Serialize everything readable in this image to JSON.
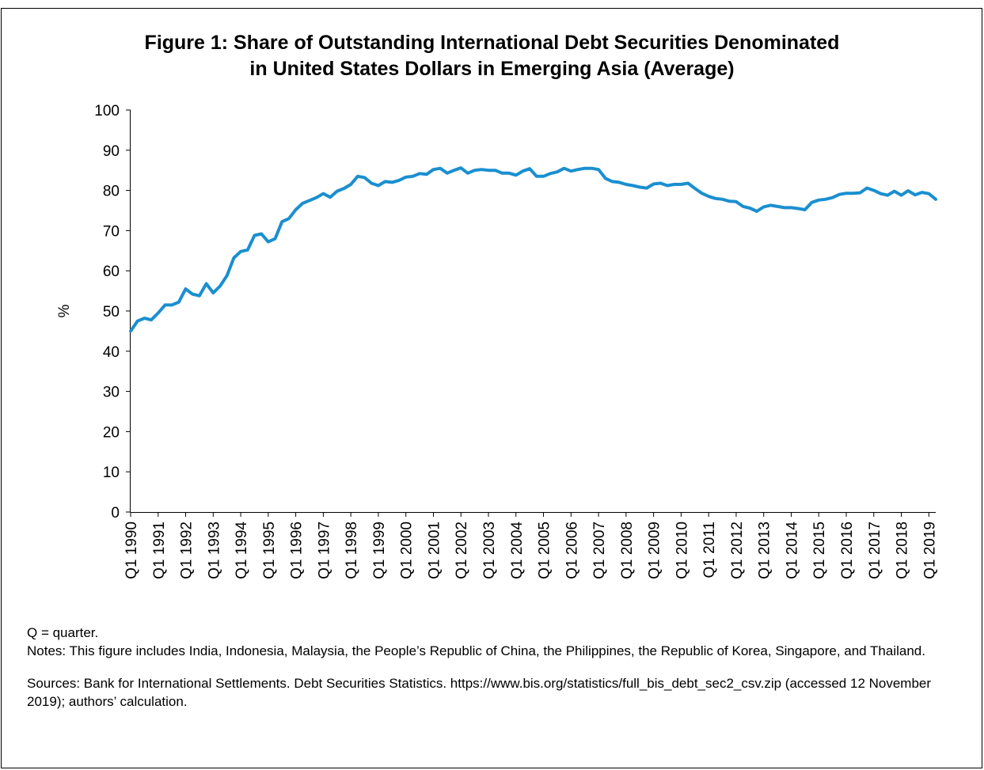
{
  "chart_data": {
    "type": "line",
    "title_line1": "Figure 1: Share of Outstanding International Debt Securities Denominated",
    "title_line2": "in United States Dollars in Emerging Asia (Average)",
    "ylabel": "%",
    "ylim": [
      0,
      100
    ],
    "yticks": [
      0,
      10,
      20,
      30,
      40,
      50,
      60,
      70,
      80,
      90,
      100
    ],
    "xticks": [
      "Q1 1990",
      "Q1 1991",
      "Q1 1992",
      "Q1 1993",
      "Q1 1994",
      "Q1 1995",
      "Q1 1996",
      "Q1 1997",
      "Q1 1998",
      "Q1 1999",
      "Q1 2000",
      "Q1 2001",
      "Q1 2002",
      "Q1 2003",
      "Q1 2004",
      "Q1 2005",
      "Q1 2006",
      "Q1 2007",
      "Q1 2008",
      "Q1 2009",
      "Q1 2010",
      "Q1 2011",
      "Q1 2012",
      "Q1 2013",
      "Q1 2014",
      "Q1 2015",
      "Q1 2016",
      "Q1 2017",
      "Q1 2018",
      "Q1 2019"
    ],
    "x_start": "Q1 1990",
    "x_frequency": "quarterly",
    "series_color": "#1a8fd0",
    "grid": false,
    "legend": "none",
    "values": [
      45,
      47.5,
      48.2,
      47.8,
      49.5,
      51.5,
      51.5,
      52.2,
      55.5,
      54.2,
      53.8,
      56.8,
      54.5,
      56.2,
      58.8,
      63.2,
      64.8,
      65.2,
      68.8,
      69.2,
      67.2,
      68.0,
      72.2,
      73.0,
      75.2,
      76.8,
      77.5,
      78.2,
      79.2,
      78.3,
      79.8,
      80.5,
      81.5,
      83.5,
      83.2,
      81.8,
      81.2,
      82.2,
      82.0,
      82.5,
      83.3,
      83.5,
      84.2,
      84.0,
      85.2,
      85.5,
      84.3,
      85.0,
      85.6,
      84.3,
      85.0,
      85.2,
      85.0,
      85.0,
      84.3,
      84.3,
      83.8,
      84.8,
      85.4,
      83.5,
      83.5,
      84.2,
      84.6,
      85.5,
      84.8,
      85.2,
      85.5,
      85.5,
      85.2,
      83.0,
      82.2,
      82.0,
      81.5,
      81.2,
      80.8,
      80.6,
      81.6,
      81.8,
      81.2,
      81.5,
      81.5,
      81.8,
      80.5,
      79.3,
      78.5,
      78.0,
      77.8,
      77.3,
      77.2,
      76.0,
      75.6,
      74.8,
      75.9,
      76.3,
      76.0,
      75.7,
      75.7,
      75.5,
      75.2,
      77.0,
      77.6,
      77.8,
      78.2,
      79.0,
      79.3,
      79.3,
      79.4,
      80.6,
      80.0,
      79.2,
      78.8,
      79.8,
      78.8,
      79.9,
      78.9,
      79.5,
      79.2,
      77.8
    ]
  },
  "notes": {
    "abbreviation": "Q = quarter.",
    "notes_text": "Notes: This figure includes India, Indonesia, Malaysia, the People’s Republic of China, the Philippines, the Republic of Korea, Singapore, and Thailand.",
    "sources_text": "Sources: Bank for International Settlements. Debt Securities Statistics. https://www.bis.org/statistics/full_bis_debt_sec2_csv.zip (accessed 12 November 2019); authors’ calculation."
  }
}
